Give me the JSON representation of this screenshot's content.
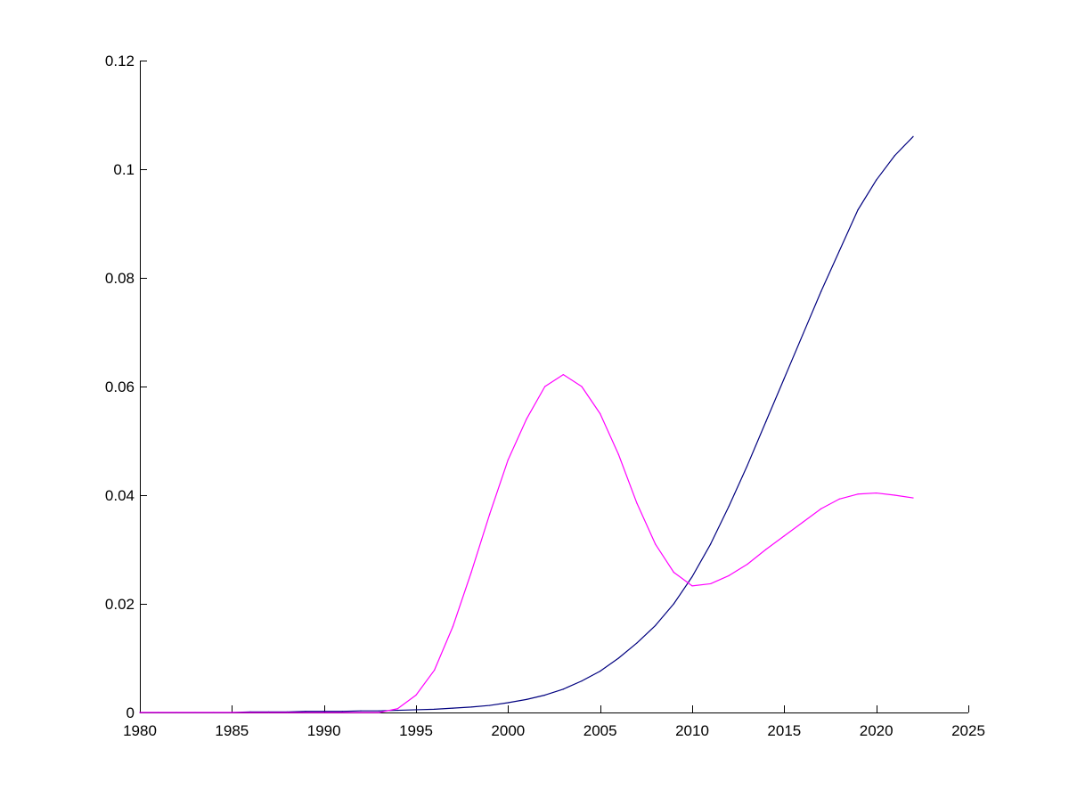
{
  "chart_data": {
    "type": "line",
    "title": "",
    "xlabel": "",
    "ylabel": "",
    "xlim": [
      1980,
      2025
    ],
    "ylim": [
      0,
      0.12
    ],
    "grid": false,
    "x_ticks": [
      1980,
      1985,
      1990,
      1995,
      2000,
      2005,
      2010,
      2015,
      2020,
      2025
    ],
    "x_tick_labels": [
      "1980",
      "1985",
      "1990",
      "1995",
      "2000",
      "2005",
      "2010",
      "2015",
      "2020",
      "2025"
    ],
    "y_ticks": [
      0,
      0.02,
      0.04,
      0.06,
      0.08,
      0.1,
      0.12
    ],
    "y_tick_labels": [
      "0",
      "0.02",
      "0.04",
      "0.06",
      "0.08",
      "0.1",
      "0.12"
    ],
    "x": [
      1980,
      1981,
      1982,
      1983,
      1984,
      1985,
      1986,
      1987,
      1988,
      1989,
      1990,
      1991,
      1992,
      1993,
      1994,
      1995,
      1996,
      1997,
      1998,
      1999,
      2000,
      2001,
      2002,
      2003,
      2004,
      2005,
      2006,
      2007,
      2008,
      2009,
      2010,
      2011,
      2012,
      2013,
      2014,
      2015,
      2016,
      2017,
      2018,
      2019,
      2020,
      2021,
      2022
    ],
    "series": [
      {
        "color": "#00007f",
        "values": [
          0,
          0,
          0,
          0,
          0,
          0,
          0.0001,
          0.0001,
          0.0001,
          0.0002,
          0.0002,
          0.0002,
          0.0003,
          0.0003,
          0.0004,
          0.0005,
          0.0006,
          0.0008,
          0.001,
          0.0013,
          0.0018,
          0.0024,
          0.0032,
          0.0043,
          0.0058,
          0.0076,
          0.01,
          0.0128,
          0.016,
          0.02,
          0.025,
          0.031,
          0.038,
          0.0455,
          0.0535,
          0.0615,
          0.0695,
          0.0775,
          0.085,
          0.0925,
          0.098,
          0.1025,
          0.106
        ]
      },
      {
        "color": "#ff00ff",
        "values": [
          0,
          0,
          0,
          0,
          0,
          0,
          0,
          0,
          0,
          0,
          0,
          0,
          0,
          0,
          0.0007,
          0.0032,
          0.0078,
          0.0158,
          0.0258,
          0.0365,
          0.0465,
          0.054,
          0.06,
          0.0622,
          0.06,
          0.055,
          0.0475,
          0.0385,
          0.031,
          0.0258,
          0.0233,
          0.0237,
          0.0252,
          0.0273,
          0.03,
          0.0325,
          0.035,
          0.0375,
          0.0393,
          0.0402,
          0.0404,
          0.04,
          0.0395
        ]
      }
    ]
  }
}
